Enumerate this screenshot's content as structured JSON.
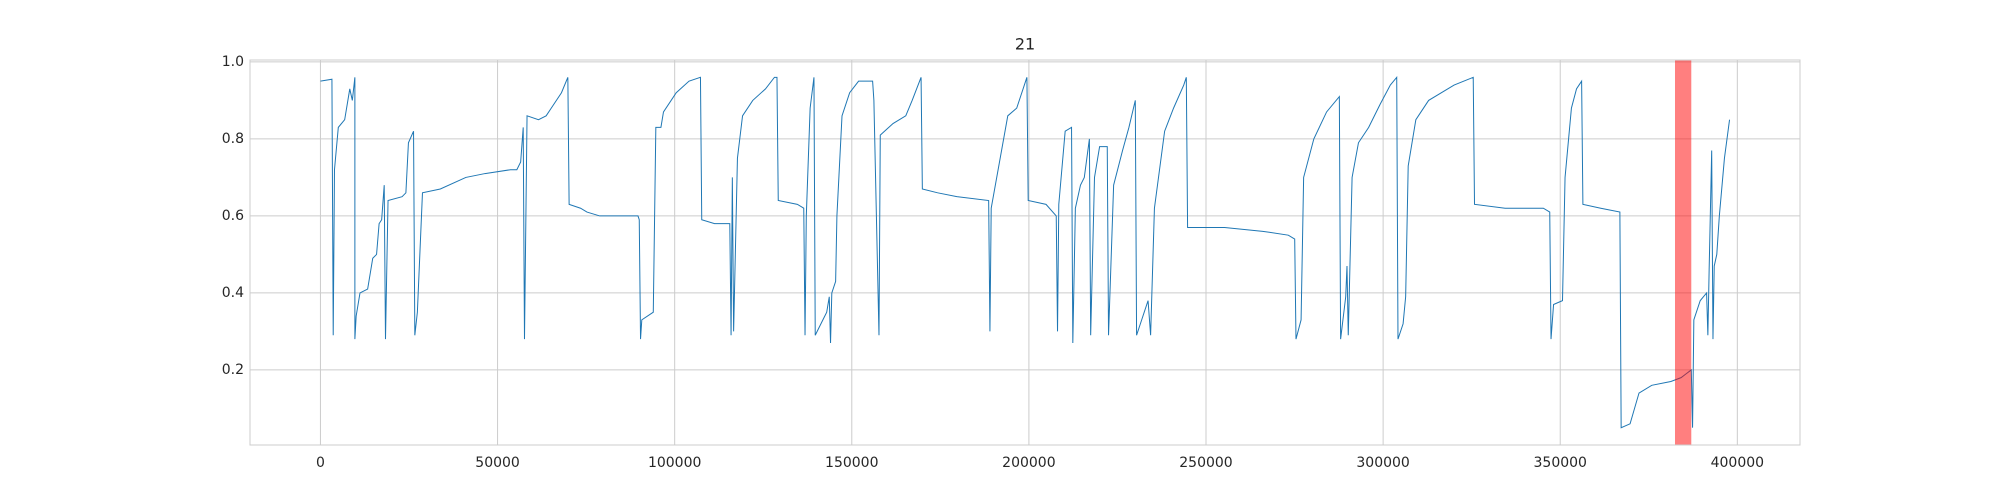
{
  "chart_data": {
    "type": "line",
    "title": "21",
    "color": "#1f77b4",
    "grid": true,
    "xlim": [
      -19890,
      417690
    ],
    "ylim": [
      0.005,
      1.005
    ],
    "xticks": [
      0,
      50000,
      100000,
      150000,
      200000,
      250000,
      300000,
      350000,
      400000
    ],
    "yticks": [
      0.2,
      0.4,
      0.6,
      0.8,
      {
        "value": 1,
        "label": "1.0"
      }
    ],
    "highlight_span": {
      "xmin": 382400,
      "xmax": 387000,
      "color": "#ff0000",
      "alpha": 0.5
    },
    "x": [
      0,
      3240,
      3600,
      3960,
      5040,
      6840,
      8280,
      9000,
      9720,
      9720,
      10080,
      11160,
      13320,
      14760,
      15840,
      16560,
      17280,
      18000,
      18360,
      19080,
      23040,
      24120,
      24840,
      26280,
      26640,
      27360,
      28800,
      33840,
      41040,
      46440,
      53640,
      55440,
      56520,
      57240,
      57600,
      58320,
      61560,
      63720,
      65160,
      68040,
      69840,
      70200,
      73440,
      75240,
      78840,
      89640,
      90000,
      90360,
      90720,
      93960,
      94680,
      96120,
      96840,
      100440,
      104040,
      107280,
      107640,
      111240,
      115560,
      115920,
      116280,
      116640,
      117720,
      119160,
      122040,
      125640,
      128160,
      128880,
      129240,
      134640,
      136440,
      136800,
      137160,
      138240,
      139320,
      139680,
      141840,
      142920,
      143640,
      144000,
      144360,
      145440,
      145800,
      147240,
      149400,
      151920,
      155880,
      156240,
      157680,
      158040,
      161640,
      165240,
      167040,
      169560,
      169920,
      174240,
      179640,
      188640,
      189000,
      189360,
      194040,
      196560,
      199440,
      199800,
      204840,
      207720,
      208080,
      208440,
      210240,
      212040,
      212400,
      213120,
      214560,
      215640,
      217080,
      217440,
      218520,
      219960,
      222120,
      222480,
      223920,
      226440,
      228240,
      230040,
      230400,
      231840,
      233640,
      234360,
      235440,
      238320,
      240840,
      243720,
      244440,
      244800,
      255240,
      266040,
      273240,
      275040,
      275400,
      276840,
      277560,
      280440,
      284040,
      287640,
      288000,
      289440,
      289800,
      290160,
      291240,
      293040,
      295920,
      299160,
      302040,
      303840,
      304200,
      305640,
      306360,
      307080,
      309240,
      312840,
      320040,
      325440,
      325800,
      334440,
      345240,
      347040,
      347400,
      348120,
      350640,
      351360,
      353160,
      354600,
      356040,
      356400,
      361440,
      366840,
      367200,
      369720,
      372240,
      375840,
      381240,
      384120,
      385560,
      387000,
      387360,
      387720,
      389520,
      391320,
      391680,
      392040,
      392760,
      393120,
      393480,
      394200,
      394920,
      396360,
      397800
    ],
    "values": [
      0.95,
      0.955,
      0.29,
      0.72,
      0.83,
      0.85,
      0.93,
      0.9,
      0.96,
      0.28,
      0.34,
      0.4,
      0.41,
      0.49,
      0.5,
      0.58,
      0.59,
      0.68,
      0.28,
      0.64,
      0.65,
      0.66,
      0.79,
      0.82,
      0.29,
      0.35,
      0.66,
      0.67,
      0.7,
      0.71,
      0.72,
      0.72,
      0.74,
      0.83,
      0.28,
      0.86,
      0.85,
      0.86,
      0.88,
      0.92,
      0.96,
      0.63,
      0.62,
      0.61,
      0.6,
      0.6,
      0.59,
      0.28,
      0.33,
      0.35,
      0.83,
      0.83,
      0.87,
      0.92,
      0.95,
      0.96,
      0.59,
      0.58,
      0.58,
      0.29,
      0.7,
      0.3,
      0.75,
      0.86,
      0.9,
      0.93,
      0.96,
      0.96,
      0.64,
      0.63,
      0.62,
      0.29,
      0.6,
      0.88,
      0.96,
      0.29,
      0.33,
      0.35,
      0.39,
      0.27,
      0.4,
      0.43,
      0.6,
      0.86,
      0.92,
      0.95,
      0.95,
      0.9,
      0.29,
      0.81,
      0.84,
      0.86,
      0.9,
      0.96,
      0.67,
      0.66,
      0.65,
      0.64,
      0.3,
      0.62,
      0.86,
      0.88,
      0.96,
      0.64,
      0.63,
      0.6,
      0.3,
      0.63,
      0.82,
      0.83,
      0.27,
      0.62,
      0.68,
      0.7,
      0.8,
      0.29,
      0.7,
      0.78,
      0.78,
      0.29,
      0.68,
      0.77,
      0.83,
      0.9,
      0.29,
      0.33,
      0.38,
      0.29,
      0.62,
      0.82,
      0.88,
      0.94,
      0.96,
      0.57,
      0.57,
      0.56,
      0.55,
      0.54,
      0.28,
      0.33,
      0.7,
      0.8,
      0.87,
      0.91,
      0.28,
      0.39,
      0.47,
      0.29,
      0.7,
      0.79,
      0.83,
      0.89,
      0.94,
      0.96,
      0.28,
      0.32,
      0.39,
      0.73,
      0.85,
      0.9,
      0.94,
      0.96,
      0.63,
      0.62,
      0.62,
      0.61,
      0.28,
      0.37,
      0.38,
      0.7,
      0.88,
      0.93,
      0.95,
      0.63,
      0.62,
      0.61,
      0.05,
      0.06,
      0.14,
      0.16,
      0.17,
      0.18,
      0.19,
      0.2,
      0.05,
      0.33,
      0.38,
      0.4,
      0.29,
      0.46,
      0.77,
      0.28,
      0.47,
      0.5,
      0.6,
      0.75,
      0.85
    ]
  }
}
